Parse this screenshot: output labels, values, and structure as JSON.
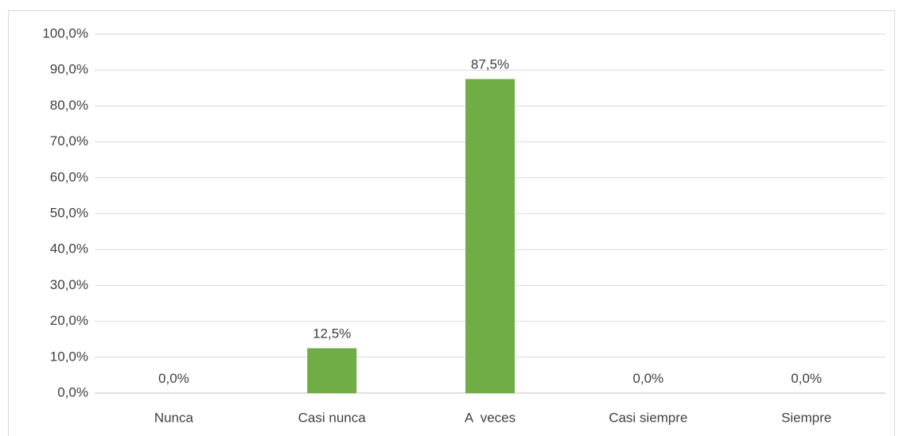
{
  "chart_data": {
    "type": "bar",
    "categories": [
      "Nunca",
      "Casi nunca",
      "A  veces",
      "Casi siempre",
      "Siempre"
    ],
    "values": [
      0.0,
      12.5,
      87.5,
      0.0,
      0.0
    ],
    "data_labels": [
      "0,0%",
      "12,5%",
      "87,5%",
      "0,0%",
      "0,0%"
    ],
    "y_ticks": [
      {
        "value": 0,
        "label": "0,0%"
      },
      {
        "value": 10,
        "label": "10,0%"
      },
      {
        "value": 20,
        "label": "20,0%"
      },
      {
        "value": 30,
        "label": "30,0%"
      },
      {
        "value": 40,
        "label": "40,0%"
      },
      {
        "value": 50,
        "label": "50,0%"
      },
      {
        "value": 60,
        "label": "60,0%"
      },
      {
        "value": 70,
        "label": "70,0%"
      },
      {
        "value": 80,
        "label": "80,0%"
      },
      {
        "value": 90,
        "label": "90,0%"
      },
      {
        "value": 100,
        "label": "100,0%"
      }
    ],
    "ylim": [
      0,
      100
    ],
    "title": "",
    "xlabel": "",
    "ylabel": "",
    "grid": true,
    "legend": "none",
    "bar_color": "#70ad47"
  }
}
